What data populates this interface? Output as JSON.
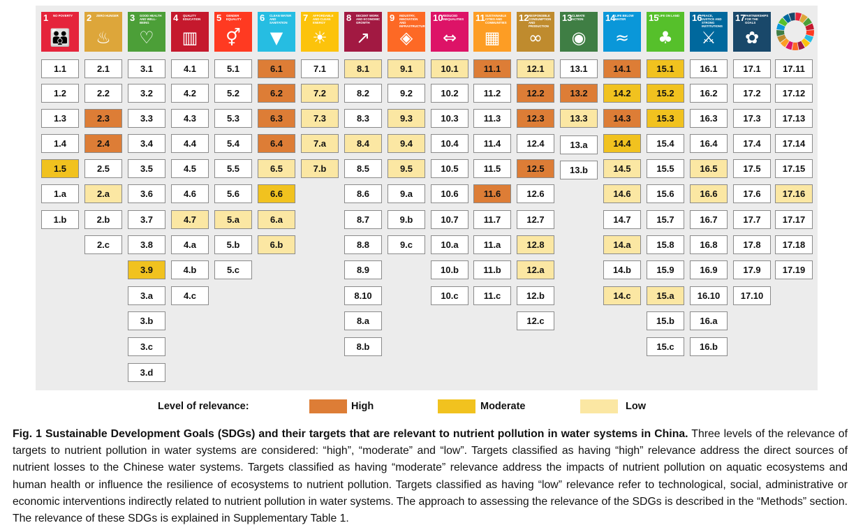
{
  "colors": {
    "high": "#dd7d36",
    "moderate": "#f1c21f",
    "low": "#fbe7a3",
    "none": "#ffffff"
  },
  "goals": [
    {
      "number": "1",
      "title": "NO POVERTY",
      "color": "#e5243b",
      "icon": "people-icon",
      "targets": [
        [
          "1.1",
          ""
        ],
        [
          "1.2",
          ""
        ],
        [
          "1.3",
          ""
        ],
        [
          "1.4",
          ""
        ],
        [
          "1.5",
          "moderate"
        ],
        [
          "1.a",
          ""
        ],
        [
          "1.b",
          ""
        ]
      ]
    },
    {
      "number": "2",
      "title": "ZERO HUNGER",
      "color": "#dda63a",
      "icon": "bowl-icon",
      "targets": [
        [
          "2.1",
          ""
        ],
        [
          "2.2",
          ""
        ],
        [
          "2.3",
          "high"
        ],
        [
          "2.4",
          "high"
        ],
        [
          "2.5",
          ""
        ],
        [
          "2.a",
          "low"
        ],
        [
          "2.b",
          ""
        ],
        [
          "2.c",
          ""
        ]
      ]
    },
    {
      "number": "3",
      "title": "GOOD HEALTH AND WELL-BEING",
      "color": "#4c9f38",
      "icon": "heartbeat-icon",
      "targets": [
        [
          "3.1",
          ""
        ],
        [
          "3.2",
          ""
        ],
        [
          "3.3",
          ""
        ],
        [
          "3.4",
          ""
        ],
        [
          "3.5",
          ""
        ],
        [
          "3.6",
          ""
        ],
        [
          "3.7",
          ""
        ],
        [
          "3.8",
          ""
        ],
        [
          "3.9",
          "moderate"
        ],
        [
          "3.a",
          ""
        ],
        [
          "3.b",
          ""
        ],
        [
          "3.c",
          ""
        ],
        [
          "3.d",
          ""
        ]
      ]
    },
    {
      "number": "4",
      "title": "QUALITY EDUCATION",
      "color": "#c5192d",
      "icon": "book-icon",
      "targets": [
        [
          "4.1",
          ""
        ],
        [
          "4.2",
          ""
        ],
        [
          "4.3",
          ""
        ],
        [
          "4.4",
          ""
        ],
        [
          "4.5",
          ""
        ],
        [
          "4.6",
          ""
        ],
        [
          "4.7",
          "low"
        ],
        [
          "4.a",
          ""
        ],
        [
          "4.b",
          ""
        ],
        [
          "4.c",
          ""
        ]
      ]
    },
    {
      "number": "5",
      "title": "GENDER EQUALITY",
      "color": "#ff3a21",
      "icon": "gender-icon",
      "targets": [
        [
          "5.1",
          ""
        ],
        [
          "5.2",
          ""
        ],
        [
          "5.3",
          ""
        ],
        [
          "5.4",
          ""
        ],
        [
          "5.5",
          ""
        ],
        [
          "5.6",
          ""
        ],
        [
          "5.a",
          "low"
        ],
        [
          "5.b",
          ""
        ],
        [
          "5.c",
          ""
        ]
      ]
    },
    {
      "number": "6",
      "title": "CLEAN WATER AND SANITATION",
      "color": "#26bde2",
      "icon": "water-drop-icon",
      "targets": [
        [
          "6.1",
          "high"
        ],
        [
          "6.2",
          "high"
        ],
        [
          "6.3",
          "high"
        ],
        [
          "6.4",
          "high"
        ],
        [
          "6.5",
          "low"
        ],
        [
          "6.6",
          "moderate"
        ],
        [
          "6.a",
          "low"
        ],
        [
          "6.b",
          "low"
        ]
      ]
    },
    {
      "number": "7",
      "title": "AFFORDABLE AND CLEAN ENERGY",
      "color": "#fcc30b",
      "icon": "sun-icon",
      "targets": [
        [
          "7.1",
          ""
        ],
        [
          "7.2",
          "low"
        ],
        [
          "7.3",
          "low"
        ],
        [
          "7.a",
          "low"
        ],
        [
          "7.b",
          "low"
        ]
      ]
    },
    {
      "number": "8",
      "title": "DECENT WORK AND ECONOMIC GROWTH",
      "color": "#a21942",
      "icon": "growth-chart-icon",
      "targets": [
        [
          "8.1",
          "low"
        ],
        [
          "8.2",
          ""
        ],
        [
          "8.3",
          ""
        ],
        [
          "8.4",
          "low"
        ],
        [
          "8.5",
          ""
        ],
        [
          "8.6",
          ""
        ],
        [
          "8.7",
          ""
        ],
        [
          "8.8",
          ""
        ],
        [
          "8.9",
          ""
        ],
        [
          "8.10",
          ""
        ],
        [
          "8.a",
          ""
        ],
        [
          "8.b",
          ""
        ]
      ]
    },
    {
      "number": "9",
      "title": "INDUSTRY, INNOVATION AND INFRASTRUCTURE",
      "color": "#fd6925",
      "icon": "cubes-icon",
      "targets": [
        [
          "9.1",
          "low"
        ],
        [
          "9.2",
          ""
        ],
        [
          "9.3",
          "low"
        ],
        [
          "9.4",
          "low"
        ],
        [
          "9.5",
          "low"
        ],
        [
          "9.a",
          ""
        ],
        [
          "9.b",
          ""
        ],
        [
          "9.c",
          ""
        ]
      ]
    },
    {
      "number": "10",
      "title": "REDUCED INEQUALITIES",
      "color": "#dd1367",
      "icon": "equality-icon",
      "targets": [
        [
          "10.1",
          "low"
        ],
        [
          "10.2",
          ""
        ],
        [
          "10.3",
          ""
        ],
        [
          "10.4",
          ""
        ],
        [
          "10.5",
          ""
        ],
        [
          "10.6",
          ""
        ],
        [
          "10.7",
          ""
        ],
        [
          "10.a",
          ""
        ],
        [
          "10.b",
          ""
        ],
        [
          "10.c",
          ""
        ]
      ]
    },
    {
      "number": "11",
      "title": "SUSTAINABLE CITIES AND COMMUNITIES",
      "color": "#fd9d24",
      "icon": "city-icon",
      "targets": [
        [
          "11.1",
          "high"
        ],
        [
          "11.2",
          ""
        ],
        [
          "11.3",
          ""
        ],
        [
          "11.4",
          ""
        ],
        [
          "11.5",
          ""
        ],
        [
          "11.6",
          "high"
        ],
        [
          "11.7",
          ""
        ],
        [
          "11.a",
          ""
        ],
        [
          "11.b",
          ""
        ],
        [
          "11.c",
          ""
        ]
      ]
    },
    {
      "number": "12",
      "title": "RESPONSIBLE CONSUMPTION AND PRODUCTION",
      "color": "#bf8b2e",
      "icon": "infinity-icon",
      "targets": [
        [
          "12.1",
          "low"
        ],
        [
          "12.2",
          "high"
        ],
        [
          "12.3",
          "high"
        ],
        [
          "12.4",
          ""
        ],
        [
          "12.5",
          "high"
        ],
        [
          "12.6",
          ""
        ],
        [
          "12.7",
          ""
        ],
        [
          "12.8",
          "low"
        ],
        [
          "12.a",
          "low"
        ],
        [
          "12.b",
          ""
        ],
        [
          "12.c",
          ""
        ]
      ]
    },
    {
      "number": "13",
      "title": "CLIMATE ACTION",
      "color": "#3f7e44",
      "icon": "eye-globe-icon",
      "targets": [
        [
          "13.1",
          ""
        ],
        [
          "13.2",
          "high"
        ],
        [
          "13.3",
          "low"
        ],
        [
          "13.a",
          ""
        ],
        [
          "13.b",
          ""
        ]
      ]
    },
    {
      "number": "14",
      "title": "LIFE BELOW WATER",
      "color": "#0a97d9",
      "icon": "fish-icon",
      "targets": [
        [
          "14.1",
          "high"
        ],
        [
          "14.2",
          "moderate"
        ],
        [
          "14.3",
          "high"
        ],
        [
          "14.4",
          "moderate"
        ],
        [
          "14.5",
          "low"
        ],
        [
          "14.6",
          "low"
        ],
        [
          "14.7",
          ""
        ],
        [
          "14.a",
          "low"
        ],
        [
          "14.b",
          ""
        ],
        [
          "14.c",
          "low"
        ]
      ]
    },
    {
      "number": "15",
      "title": "LIFE ON LAND",
      "color": "#56c02b",
      "icon": "tree-icon",
      "targets": [
        [
          "15.1",
          "moderate"
        ],
        [
          "15.2",
          "moderate"
        ],
        [
          "15.3",
          "moderate"
        ],
        [
          "15.4",
          ""
        ],
        [
          "15.5",
          ""
        ],
        [
          "15.6",
          ""
        ],
        [
          "15.7",
          ""
        ],
        [
          "15.8",
          ""
        ],
        [
          "15.9",
          ""
        ],
        [
          "15.a",
          "low"
        ],
        [
          "15.b",
          ""
        ],
        [
          "15.c",
          ""
        ]
      ]
    },
    {
      "number": "16",
      "title": "PEACE, JUSTICE AND STRONG INSTITUTIONS",
      "color": "#00689d",
      "icon": "dove-icon",
      "targets": [
        [
          "16.1",
          ""
        ],
        [
          "16.2",
          ""
        ],
        [
          "16.3",
          ""
        ],
        [
          "16.4",
          ""
        ],
        [
          "16.5",
          "low"
        ],
        [
          "16.6",
          "low"
        ],
        [
          "16.7",
          ""
        ],
        [
          "16.8",
          ""
        ],
        [
          "16.9",
          ""
        ],
        [
          "16.10",
          ""
        ],
        [
          "16.a",
          ""
        ],
        [
          "16.b",
          ""
        ]
      ]
    },
    {
      "number": "17",
      "title": "PARTNERSHIPS FOR THE GOALS",
      "color": "#19486a",
      "icon": "partnership-flower-icon",
      "targets": [
        [
          "17.1",
          ""
        ],
        [
          "17.2",
          ""
        ],
        [
          "17.3",
          ""
        ],
        [
          "17.4",
          ""
        ],
        [
          "17.5",
          ""
        ],
        [
          "17.6",
          ""
        ],
        [
          "17.7",
          ""
        ],
        [
          "17.8",
          ""
        ],
        [
          "17.9",
          ""
        ],
        [
          "17.10",
          ""
        ]
      ]
    }
  ],
  "goal17_extra": [
    [
      "17.11",
      ""
    ],
    [
      "17.12",
      ""
    ],
    [
      "17.13",
      ""
    ],
    [
      "17.14",
      ""
    ],
    [
      "17.15",
      ""
    ],
    [
      "17.16",
      "low"
    ],
    [
      "17.17",
      ""
    ],
    [
      "17.18",
      ""
    ],
    [
      "17.19",
      ""
    ]
  ],
  "sdg_wheel_colors": [
    "#e5243b",
    "#dda63a",
    "#4c9f38",
    "#c5192d",
    "#ff3a21",
    "#26bde2",
    "#fcc30b",
    "#a21942",
    "#fd6925",
    "#dd1367",
    "#fd9d24",
    "#bf8b2e",
    "#3f7e44",
    "#0a97d9",
    "#56c02b",
    "#00689d",
    "#19486a"
  ],
  "legend": {
    "title": "Level of relevance:",
    "high": "High",
    "moderate": "Moderate",
    "low": "Low"
  },
  "caption": {
    "lead": "Fig. 1 Sustainable Development Goals (SDGs) and their targets that are relevant to nutrient pollution in water systems in China.",
    "body": " Three levels of the relevance of targets to nutrient pollution in water systems are considered: “high”, “moderate” and “low”. Targets classified as having “high” relevance address the direct sources of nutrient losses to the Chinese water systems. Targets classified as having “moderate” relevance address the impacts of nutrient pollution on aquatic ecosystems and human health or influence the resilience of ecosystems to nutrient pollution. Targets classified as having “low” relevance refer to technological, social, administrative or economic interventions indirectly related to nutrient pollution in water systems. The approach to assessing the relevance of the SDGs is described in the “Methods” section. The relevance of these SDGs is explained in Supplementary Table 1."
  }
}
